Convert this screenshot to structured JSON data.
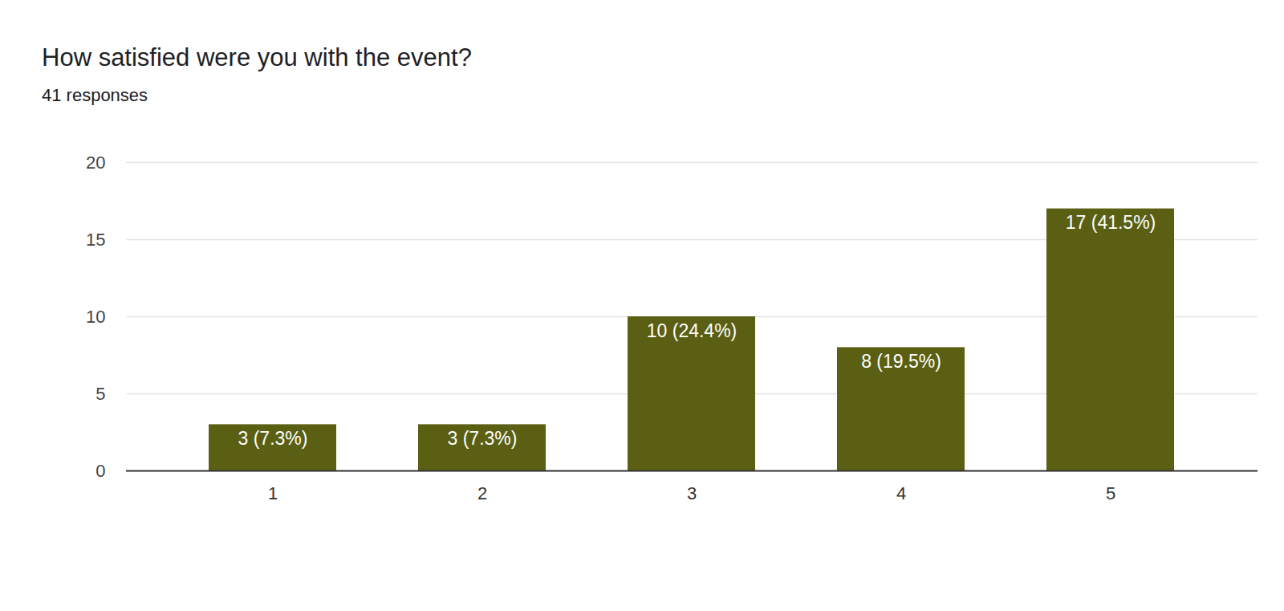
{
  "chart_data": {
    "type": "bar",
    "title": "How satisfied were you with the event?",
    "subtitle": "41 responses",
    "categories": [
      "1",
      "2",
      "3",
      "4",
      "5"
    ],
    "values": [
      3,
      3,
      10,
      8,
      17
    ],
    "value_labels": [
      "3 (7.3%)",
      "3 (7.3%)",
      "10 (24.4%)",
      "8 (19.5%)",
      "17 (41.5%)"
    ],
    "data_labels": true,
    "color": "#5a5f13",
    "ylim": [
      0,
      20
    ],
    "yticks": [
      0,
      5,
      10,
      15,
      20
    ],
    "grid": true
  }
}
